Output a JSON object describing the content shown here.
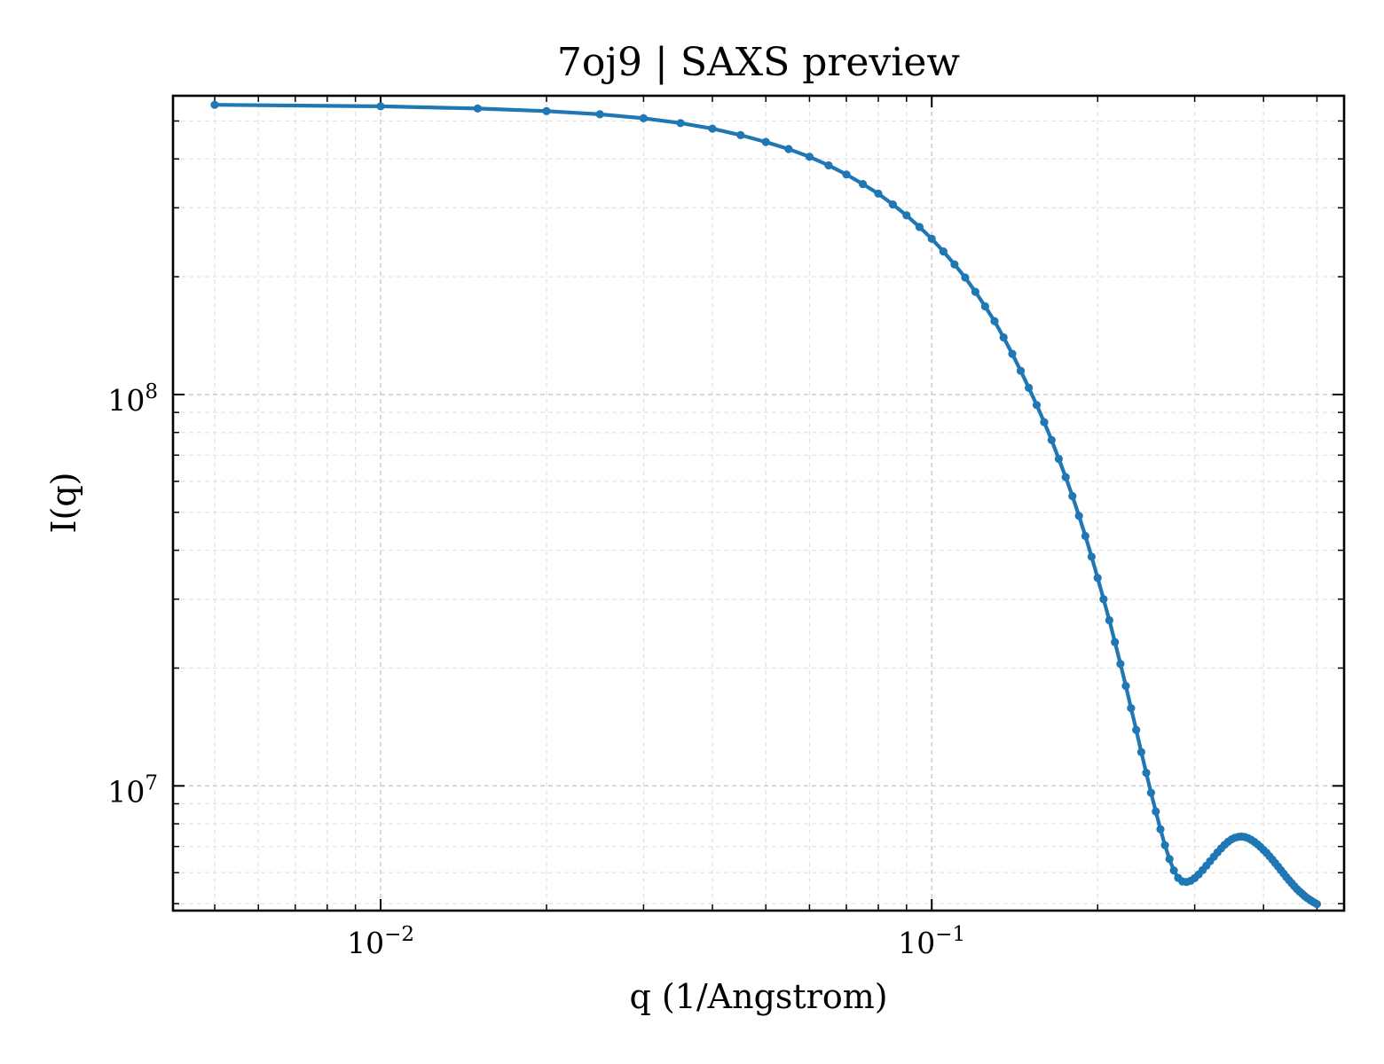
{
  "chart_data": {
    "type": "line",
    "title": "7oj9 | SAXS preview",
    "xlabel": "q (1/Angstrom)",
    "ylabel": "I(q)",
    "xscale": "log",
    "yscale": "log",
    "xlim": [
      0.0042,
      0.56
    ],
    "ylim": [
      4800000,
      580000000
    ],
    "grid": true,
    "legend": "none",
    "series": [
      {
        "color": "#1f77b4",
        "marker": "dot",
        "x": [
          0.005,
          0.01,
          0.015,
          0.02,
          0.025,
          0.03,
          0.035,
          0.04,
          0.045,
          0.05,
          0.055,
          0.06,
          0.065,
          0.07,
          0.075,
          0.08,
          0.085,
          0.09,
          0.095,
          0.1,
          0.105,
          0.11,
          0.115,
          0.12,
          0.125,
          0.13,
          0.135,
          0.14,
          0.145,
          0.15,
          0.155,
          0.16,
          0.165,
          0.17,
          0.175,
          0.18,
          0.185,
          0.19,
          0.195,
          0.2,
          0.205,
          0.21,
          0.215,
          0.22,
          0.225,
          0.23,
          0.235,
          0.24,
          0.245,
          0.25,
          0.255,
          0.26,
          0.265,
          0.27,
          0.275,
          0.28,
          0.285,
          0.29,
          0.295,
          0.3,
          0.305,
          0.31,
          0.315,
          0.32,
          0.325,
          0.33,
          0.335,
          0.34,
          0.345,
          0.35,
          0.355,
          0.36,
          0.365,
          0.37,
          0.375,
          0.38,
          0.385,
          0.39,
          0.395,
          0.4,
          0.405,
          0.41,
          0.415,
          0.42,
          0.425,
          0.43,
          0.435,
          0.44,
          0.445,
          0.45,
          0.455,
          0.46,
          0.465,
          0.47,
          0.475,
          0.48,
          0.485,
          0.49,
          0.495,
          0.5
        ],
        "y": [
          550000000,
          545000000,
          538000000,
          530000000,
          520000000,
          508000000,
          494000000,
          478000000,
          460000000,
          442000000,
          424000000,
          405000000,
          385000000,
          365000000,
          345000000,
          326000000,
          306000000,
          287000000,
          268000000,
          250000000,
          232000000,
          215000000,
          199000000,
          183000000,
          168000000,
          154000000,
          140000000,
          127000000,
          115000000,
          104000000,
          94000000,
          85000000,
          76500000,
          68500000,
          61500000,
          55000000,
          49000000,
          43500000,
          38500000,
          34000000,
          30000000,
          26500000,
          23300000,
          20500000,
          18000000,
          15800000,
          13900000,
          12200000,
          10800000,
          9600000,
          8600000,
          7750000,
          7050000,
          6500000,
          6080000,
          5820000,
          5700000,
          5680000,
          5720000,
          5810000,
          5940000,
          6090000,
          6250000,
          6420000,
          6590000,
          6760000,
          6920000,
          7070000,
          7200000,
          7300000,
          7370000,
          7410000,
          7420000,
          7400000,
          7350000,
          7280000,
          7190000,
          7090000,
          6980000,
          6860000,
          6740000,
          6610000,
          6480000,
          6350000,
          6220000,
          6090000,
          5970000,
          5850000,
          5740000,
          5640000,
          5540000,
          5450000,
          5370000,
          5300000,
          5230000,
          5170000,
          5120000,
          5070000,
          5030000,
          4990000
        ]
      }
    ],
    "ticks": {
      "x": [
        {
          "value": 0.01,
          "base": "10",
          "exp": "−2"
        },
        {
          "value": 0.1,
          "base": "10",
          "exp": "−1"
        }
      ],
      "y": [
        {
          "value": 10000000,
          "base": "10",
          "exp": "7"
        },
        {
          "value": 100000000,
          "base": "10",
          "exp": "8"
        }
      ]
    }
  }
}
